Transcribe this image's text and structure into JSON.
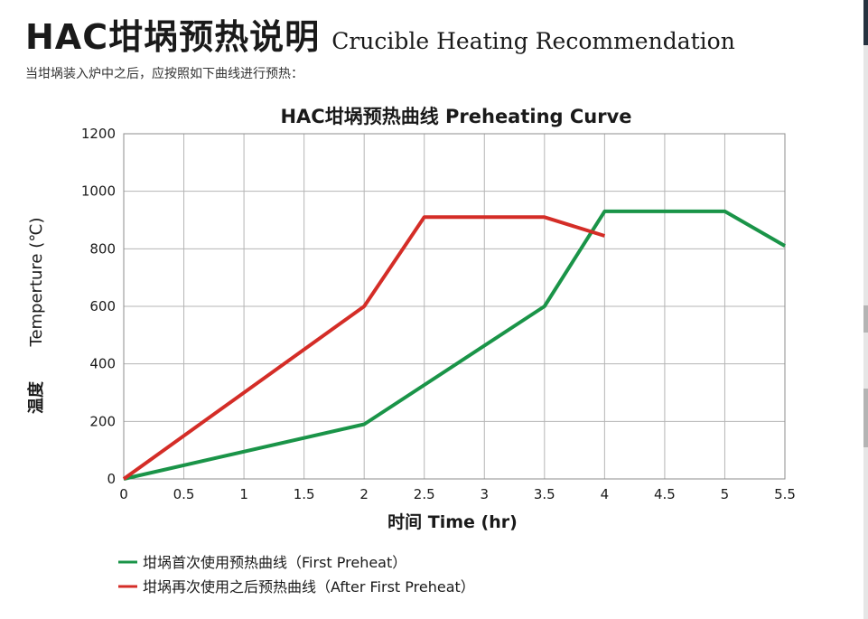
{
  "page": {
    "heading_cn": "HAC坩埚预热说明",
    "heading_en": "Crucible Heating Recommendation",
    "intro": "当坩埚装入炉中之后，应按照如下曲线进行预热："
  },
  "chart_data": {
    "type": "line",
    "title": "HAC坩埚预热曲线 Preheating Curve",
    "xlabel": "时间 Time (hr)",
    "ylabel": "Temperture (℃)",
    "ylabel_cn": "温度",
    "xlim": [
      0,
      5.5
    ],
    "ylim": [
      0,
      1200
    ],
    "x_ticks": [
      0,
      0.5,
      1,
      1.5,
      2,
      2.5,
      3,
      3.5,
      4,
      4.5,
      5,
      5.5
    ],
    "y_ticks": [
      0,
      200,
      400,
      600,
      800,
      1000,
      1200
    ],
    "grid": true,
    "legend_position": "bottom-left",
    "series": [
      {
        "name": "坩埚首次使用预热曲线（First Preheat）",
        "color": "#1a9448",
        "x": [
          0,
          2,
          3.5,
          4,
          5,
          5.5
        ],
        "y": [
          0,
          190,
          600,
          930,
          930,
          810
        ]
      },
      {
        "name": "坩埚再次使用之后预热曲线（After First Preheat）",
        "color": "#d42d27",
        "x": [
          0,
          2,
          2.5,
          3.5,
          4
        ],
        "y": [
          0,
          600,
          910,
          910,
          845
        ]
      }
    ]
  }
}
